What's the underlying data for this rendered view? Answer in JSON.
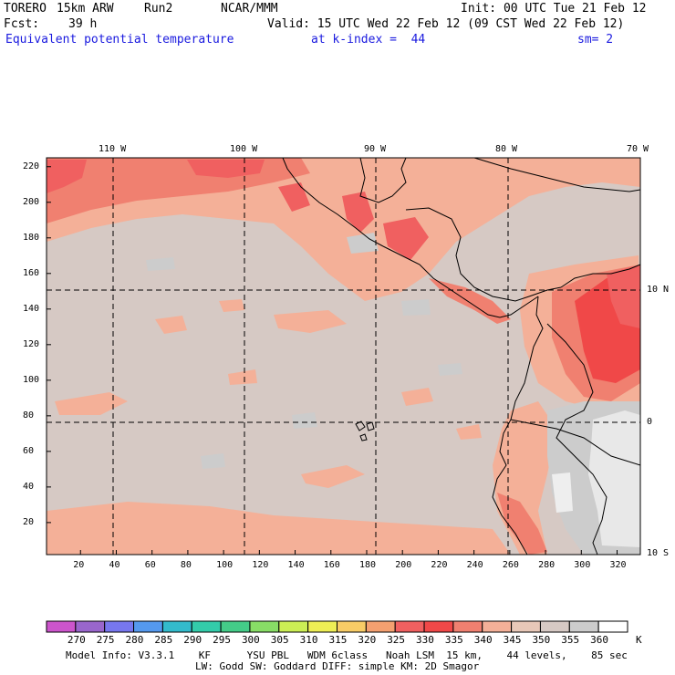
{
  "header": {
    "model": "TORERO",
    "resolution": "15km ARW",
    "run": "Run2",
    "org": "NCAR/MMM",
    "init": "Init: 00 UTC Tue 21 Feb 12",
    "fcst_label": "Fcst:",
    "fcst_value": "39 h",
    "valid": "Valid: 15 UTC Wed 22 Feb 12 (09 CST Wed 22 Feb 12)",
    "field": "Equivalent potential temperature",
    "level": "at k-index =  44",
    "smoothing": "sm= 2"
  },
  "map": {
    "top_lon_labels": [
      "110 W",
      "100 W",
      "90 W",
      "80 W",
      "70 W"
    ],
    "right_lat_labels": [
      "10 N",
      "0",
      "10 S"
    ],
    "y_grid_labels": [
      "220",
      "200",
      "180",
      "160",
      "140",
      "120",
      "100",
      "80",
      "60",
      "40",
      "20"
    ],
    "x_grid_labels": [
      "20",
      "40",
      "60",
      "80",
      "100",
      "120",
      "140",
      "160",
      "180",
      "200",
      "220",
      "240",
      "260",
      "280",
      "300",
      "320"
    ]
  },
  "colorbar": {
    "levels": [
      "270",
      "275",
      "280",
      "285",
      "290",
      "295",
      "300",
      "305",
      "310",
      "315",
      "320",
      "325",
      "330",
      "335",
      "340",
      "345",
      "350",
      "355",
      "360"
    ],
    "unit": "K",
    "colors": [
      "#cc55cc",
      "#9966cc",
      "#7777ee",
      "#5599ee",
      "#33bbcc",
      "#33ccaa",
      "#44cc88",
      "#88dd66",
      "#ccee55",
      "#eeee55",
      "#f8cc66",
      "#f4a070",
      "#f06060",
      "#f04848",
      "#f08070",
      "#f4b098",
      "#e8c8b8",
      "#d6c9c4",
      "#cccccc",
      "#ffffff"
    ]
  },
  "footer": {
    "line1": "Model Info: V3.3.1    KF      YSU PBL   WDM 6class   Noah LSM  15 km,    44 levels,    85 sec",
    "line2": "LW: Godd SW: Goddard DIFF: simple KM: 2D Smagor"
  }
}
